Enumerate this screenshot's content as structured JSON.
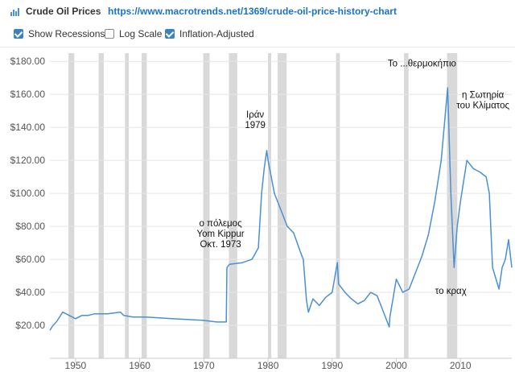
{
  "header": {
    "title": "Crude Oil Prices",
    "separator": "-",
    "url": "https://www.macrotrends.net/1369/crude-oil-price-history-chart"
  },
  "options": [
    {
      "label": "Show Recessions",
      "checked": true
    },
    {
      "label": "Log Scale",
      "checked": false
    },
    {
      "label": "Inflation-Adjusted",
      "checked": true
    }
  ],
  "colors": {
    "line": "#4a90d2",
    "recession": "#d9d9d9",
    "checkbox": "#3b82c4",
    "link": "#1a73c8"
  },
  "chart_data": {
    "type": "line",
    "title": "",
    "xlabel": "",
    "ylabel": "",
    "xlim": [
      1946,
      2018
    ],
    "ylim": [
      0,
      185
    ],
    "grid": true,
    "x_ticks": [
      1950,
      1960,
      1970,
      1980,
      1990,
      2000,
      2010
    ],
    "y_ticks": [
      "$20.00",
      "$40.00",
      "$60.00",
      "$80.00",
      "$100.00",
      "$120.00",
      "$140.00",
      "$160.00",
      "$180.00"
    ],
    "y_tick_values": [
      20,
      40,
      60,
      80,
      100,
      120,
      140,
      160,
      180
    ],
    "recessions": [
      [
        1948.9,
        1949.8
      ],
      [
        1953.6,
        1954.4
      ],
      [
        1957.7,
        1958.3
      ],
      [
        1960.3,
        1961.1
      ],
      [
        1969.9,
        1970.9
      ],
      [
        1973.9,
        1975.2
      ],
      [
        1980.0,
        1980.5
      ],
      [
        1981.5,
        1982.9
      ],
      [
        1990.6,
        1991.2
      ],
      [
        2001.2,
        2001.9
      ],
      [
        2007.9,
        2009.5
      ]
    ],
    "series": [
      {
        "name": "",
        "x": [
          1946.0,
          1946.5,
          1947.0,
          1947.5,
          1948.0,
          1949.0,
          1950.0,
          1951.0,
          1952.0,
          1953.0,
          1955.0,
          1957.0,
          1957.5,
          1959.0,
          1961.0,
          1965.0,
          1970.0,
          1972.0,
          1973.5,
          1973.6,
          1974.0,
          1976.0,
          1977.5,
          1978.5,
          1979.0,
          1979.4,
          1979.8,
          1980.0,
          1981.0,
          1982.0,
          1983.0,
          1984.0,
          1985.0,
          1985.5,
          1986.0,
          1986.3,
          1987.0,
          1988.0,
          1989.0,
          1990.0,
          1990.8,
          1991.0,
          1992.0,
          1993.0,
          1994.0,
          1995.0,
          1996.0,
          1997.0,
          1998.0,
          1998.9,
          1999.0,
          2000.0,
          2001.0,
          2002.0,
          2003.0,
          2004.0,
          2005.0,
          2006.0,
          2007.0,
          2008.0,
          2008.5,
          2009.0,
          2009.5,
          2010.0,
          2011.0,
          2012.0,
          2013.0,
          2014.0,
          2014.5,
          2015.0,
          2016.0,
          2016.5,
          2017.0,
          2017.5,
          2018.0
        ],
        "values": [
          17,
          20,
          22,
          25,
          28,
          26,
          24,
          26,
          26,
          27,
          27,
          28,
          26,
          25,
          25,
          24,
          23,
          22,
          22,
          55,
          57,
          58,
          60,
          67,
          100,
          115,
          126,
          120,
          100,
          90,
          80,
          76,
          65,
          60,
          35,
          28,
          36,
          32,
          37,
          40,
          58,
          45,
          40,
          36,
          33,
          35,
          40,
          38,
          28,
          19,
          25,
          48,
          40,
          42,
          52,
          62,
          75,
          95,
          120,
          164,
          100,
          55,
          80,
          95,
          120,
          115,
          113,
          110,
          100,
          55,
          42,
          55,
          60,
          72,
          55
        ]
      }
    ],
    "annotations": [
      {
        "lines": [
          "ο πόλεμος",
          "Yom Kippur",
          "Οκτ. 1973"
        ],
        "x": 1972.6,
        "y": 80,
        "anchor": "middle"
      },
      {
        "lines": [
          "Ιράν",
          "1979"
        ],
        "x": 1978.0,
        "y": 146,
        "anchor": "middle"
      },
      {
        "lines": [
          "Το ...θερμοκήπιο"
        ],
        "x": 2004.0,
        "y": 177,
        "anchor": "middle"
      },
      {
        "lines": [
          "η Σωτηρία",
          "του Κλίματος"
        ],
        "x": 2013.5,
        "y": 158,
        "anchor": "middle"
      },
      {
        "lines": [
          "το κραχ"
        ],
        "x": 2008.5,
        "y": 39,
        "anchor": "middle"
      }
    ]
  }
}
